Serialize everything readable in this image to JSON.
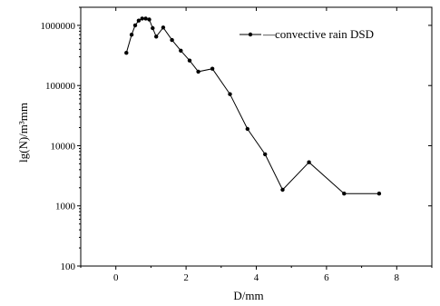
{
  "chart_data": {
    "type": "line",
    "title": "",
    "xlabel": "D/mm",
    "ylabel": "lg(N)/m³mm",
    "xlim": [
      -1,
      9
    ],
    "ylim": [
      100,
      2000000
    ],
    "yscale": "log",
    "x_ticks": [
      0,
      2,
      4,
      6,
      8
    ],
    "y_ticks": [
      100,
      1000,
      10000,
      100000,
      1000000
    ],
    "x_tick_labels": [
      "0",
      "2",
      "4",
      "6",
      "8"
    ],
    "y_tick_labels": [
      "100",
      "1000",
      "10000",
      "100000",
      "1000000"
    ],
    "grid": false,
    "legend_position": "top-right",
    "series": [
      {
        "name": "convective rain DSD",
        "color": "#000000",
        "marker": "circle",
        "x": [
          0.3,
          0.45,
          0.55,
          0.65,
          0.75,
          0.85,
          0.95,
          1.05,
          1.15,
          1.35,
          1.6,
          1.85,
          2.1,
          2.35,
          2.75,
          3.25,
          3.75,
          4.25,
          4.75,
          5.5,
          6.5,
          7.5
        ],
        "values": [
          350000,
          700000,
          1000000,
          1200000,
          1300000,
          1300000,
          1250000,
          900000,
          650000,
          920000,
          570000,
          380000,
          260000,
          170000,
          190000,
          72000,
          19000,
          7200,
          1850,
          5300,
          1600,
          1600
        ]
      }
    ]
  }
}
